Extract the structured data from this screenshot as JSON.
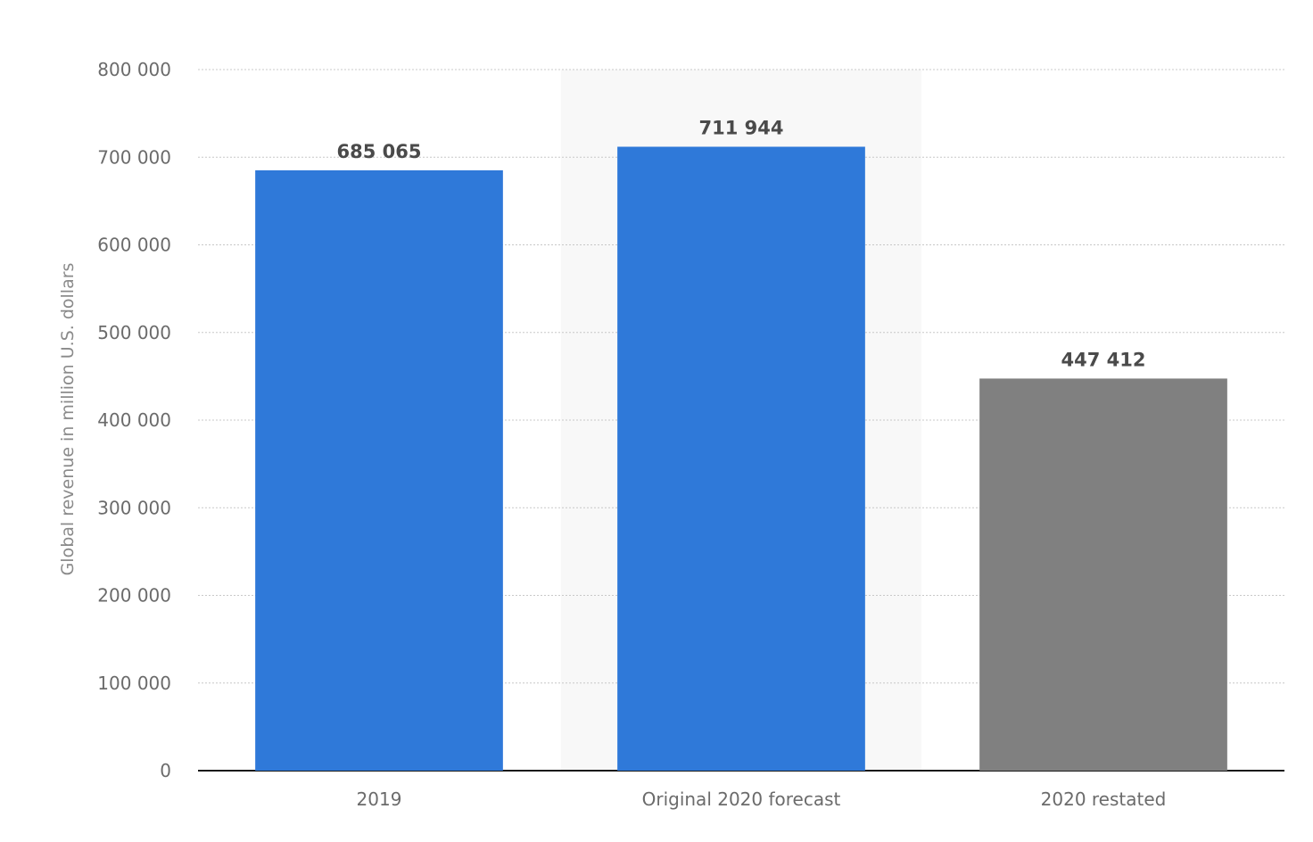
{
  "chart_data": {
    "type": "bar",
    "title": "",
    "xlabel": "",
    "ylabel": "Global revenue in million U.S. dollars",
    "categories": [
      "2019",
      "Original 2020 forecast",
      "2020 restated"
    ],
    "values": [
      685065,
      711944,
      447412
    ],
    "value_labels": [
      "685 065",
      "711 944",
      "447 412"
    ],
    "bar_colors": [
      "#2f79d9",
      "#2f79d9",
      "#808080"
    ],
    "highlight_color": "#f8f8f8",
    "highlighted_category": "Original 2020 forecast",
    "ylim": [
      0,
      800000
    ],
    "yticks": [
      0,
      100000,
      200000,
      300000,
      400000,
      500000,
      600000,
      700000,
      800000
    ],
    "ytick_labels": [
      "0",
      "100 000",
      "200 000",
      "300 000",
      "400 000",
      "500 000",
      "600 000",
      "700 000",
      "800 000"
    ],
    "grid": true,
    "legend": "none"
  }
}
